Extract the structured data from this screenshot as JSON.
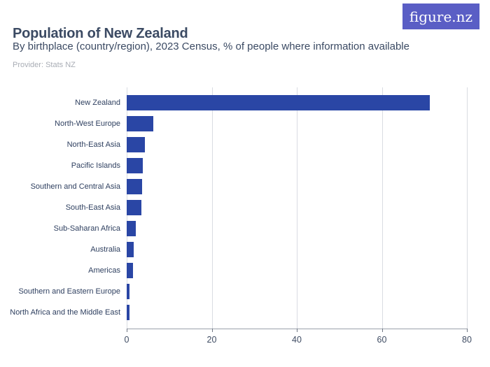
{
  "header": {
    "title": "Population of New Zealand",
    "subtitle": "By birthplace (country/region), 2023 Census, % of people where information available",
    "provider": "Provider: Stats NZ",
    "logo_text": "figure.nz"
  },
  "colors": {
    "bar": "#2a46a5",
    "logo_bg": "#5a5ec5",
    "title_text": "#3b4a63",
    "provider_text": "#a9adb5",
    "gridline": "#d9dce2",
    "axis_line": "#9aa0aa",
    "tick_text": "#3f4c63",
    "label_text": "#2f4060"
  },
  "chart_data": {
    "type": "bar",
    "orientation": "horizontal",
    "title": "Population of New Zealand",
    "subtitle": "By birthplace (country/region), 2023 Census, % of people where information available",
    "xlabel": "% of people",
    "ylabel": "Birthplace (country/region)",
    "categories": [
      "New Zealand",
      "North-West Europe",
      "North-East Asia",
      "Pacific Islands",
      "Southern and Central Asia",
      "South-East Asia",
      "Sub-Saharan Africa",
      "Australia",
      "Americas",
      "Southern and Eastern Europe",
      "North Africa and the Middle East"
    ],
    "values": [
      71.2,
      6.3,
      4.2,
      3.8,
      3.7,
      3.4,
      2.1,
      1.6,
      1.5,
      0.7,
      0.6
    ],
    "xlim": [
      0,
      80
    ],
    "x_ticks": [
      0,
      20,
      40,
      60,
      80
    ],
    "grid": "vertical",
    "legend": "none"
  }
}
